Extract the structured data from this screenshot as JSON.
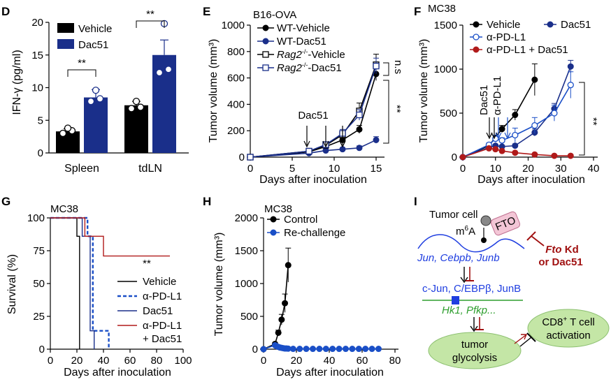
{
  "panels": [
    {
      "id": "D",
      "letter": "D",
      "chart_data": {
        "type": "bar",
        "ylabel": "IFN-γ (pg/ml)",
        "ylim": [
          0,
          20
        ],
        "yticks": [
          "0",
          "5",
          "10",
          "15",
          "20"
        ],
        "categories": [
          "Spleen",
          "tdLN"
        ],
        "series": [
          {
            "name": "Vehicle",
            "color": "#000000",
            "values": [
              3.3,
              7.3
            ],
            "errors": [
              0.4,
              0.6
            ],
            "points": [
              [
                3.0,
                3.4,
                3.8
              ],
              [
                6.8,
                7.0,
                7.9
              ]
            ]
          },
          {
            "name": "Dac51",
            "color": "#1a2f8a",
            "values": [
              8.5,
              15.0
            ],
            "errors": [
              1.2,
              2.3
            ],
            "points": [
              [
                7.9,
                8.3,
                9.6
              ],
              [
                12.3,
                12.8,
                19.8
              ]
            ]
          }
        ],
        "significance": [
          {
            "label": "**"
          },
          {
            "label": "**"
          }
        ]
      }
    },
    {
      "id": "E",
      "letter": "E",
      "chart_data": {
        "type": "line",
        "title": "B16-OVA",
        "xlabel": "Days after inoculation",
        "ylabel": "Tumor volume (mm³)",
        "xlim": [
          0,
          15
        ],
        "ylim": [
          0,
          1000
        ],
        "xticks": [
          "0",
          "5",
          "10",
          "15"
        ],
        "yticks": [
          "0",
          "200",
          "400",
          "600",
          "800",
          "1000"
        ],
        "series": [
          {
            "name": "WT-Vehicle",
            "marker": "filled-circle",
            "color": "#000000",
            "x": [
              0,
              7,
              9,
              11,
              13,
              15
            ],
            "y": [
              0,
              40,
              80,
              130,
              210,
              630
            ]
          },
          {
            "name": "WT-Dac51",
            "marker": "filled-circle",
            "color": "#1a2f8a",
            "x": [
              0,
              7,
              9,
              11,
              13,
              15
            ],
            "y": [
              0,
              30,
              50,
              60,
              70,
              130
            ]
          },
          {
            "name": "-Vehicle",
            "name_prefix": "Rag2",
            "name_sup": "-/-",
            "marker": "open-square",
            "color": "#000000",
            "x": [
              0,
              7,
              9,
              11,
              13,
              15
            ],
            "y": [
              0,
              45,
              90,
              170,
              350,
              700
            ]
          },
          {
            "name": "-Dac51",
            "name_prefix": "Rag2",
            "name_sup": "-/-",
            "marker": "open-square",
            "color": "#1a2f8a",
            "x": [
              0,
              7,
              9,
              11,
              13,
              15
            ],
            "y": [
              0,
              45,
              95,
              180,
              320,
              690
            ]
          }
        ],
        "annotations": {
          "treatment": "Dac51",
          "sig_top": "n.s",
          "sig_bottom": "**"
        }
      }
    },
    {
      "id": "F",
      "letter": "F",
      "chart_data": {
        "type": "line",
        "title": "MC38",
        "xlabel": "Days after inoculation",
        "ylabel": "Tumor volume (mm³)",
        "xlim": [
          0,
          40
        ],
        "ylim": [
          0,
          1500
        ],
        "xticks": [
          "0",
          "10",
          "20",
          "30",
          "40"
        ],
        "yticks": [
          "0",
          "500",
          "1000",
          "1500"
        ],
        "series": [
          {
            "name": "Vehicle",
            "marker": "filled-circle",
            "color": "#000000",
            "x": [
              0,
              8,
              12,
              16,
              22
            ],
            "y": [
              0,
              130,
              320,
              480,
              880
            ]
          },
          {
            "name": "Dac51",
            "marker": "filled-circle",
            "color": "#1a2f8a",
            "x": [
              0,
              8,
              10,
              12,
              16,
              22,
              28,
              33
            ],
            "y": [
              0,
              110,
              130,
              120,
              130,
              280,
              550,
              1030
            ]
          },
          {
            "name": "α-PD-L1",
            "marker": "open-circle",
            "color": "#1a4fc7",
            "x": [
              0,
              8,
              10,
              12,
              16,
              22,
              28,
              33
            ],
            "y": [
              0,
              140,
              210,
              190,
              250,
              360,
              500,
              820
            ]
          },
          {
            "name": "α-PD-L1 + Dac51",
            "marker": "filled-circle",
            "color": "#b01a1a",
            "x": [
              0,
              8,
              10,
              12,
              16,
              22,
              28,
              33
            ],
            "y": [
              0,
              100,
              90,
              70,
              50,
              30,
              15,
              15
            ]
          }
        ],
        "annotations": {
          "treatment1": "Dac51",
          "treatment2": "α-PD-L1",
          "sig": "**"
        }
      }
    },
    {
      "id": "G",
      "letter": "G",
      "chart_data": {
        "type": "line",
        "subtype": "survival",
        "title": "MC38",
        "xlabel": "Days after inoculation",
        "ylabel": "Survival (%)",
        "xlim": [
          0,
          100
        ],
        "ylim": [
          0,
          100
        ],
        "xticks": [
          "0",
          "20",
          "40",
          "60",
          "80",
          "100"
        ],
        "yticks": [
          "0",
          "25",
          "50",
          "75",
          "100"
        ],
        "series": [
          {
            "name": "Vehicle",
            "style": "solid",
            "color": "#000000",
            "x": [
              0,
              20,
              20,
              22,
              22
            ],
            "y": [
              100,
              100,
              86,
              86,
              0
            ]
          },
          {
            "name": "α-PD-L1",
            "style": "dashed",
            "color": "#1a4fc7",
            "x": [
              0,
              28,
              28,
              32,
              32,
              35,
              35,
              44,
              44
            ],
            "y": [
              100,
              100,
              86,
              86,
              14,
              14,
              14,
              14,
              0
            ]
          },
          {
            "name": "Dac51",
            "style": "solid",
            "color": "#1a2f8a",
            "x": [
              0,
              24,
              24,
              30,
              30,
              33,
              33
            ],
            "y": [
              100,
              100,
              86,
              86,
              14,
              14,
              0
            ]
          },
          {
            "name": "α-PD-L1",
            "name2": "+ Dac51",
            "style": "solid",
            "color": "#b01a1a",
            "x": [
              0,
              26,
              26,
              40,
              40,
              90
            ],
            "y": [
              100,
              100,
              86,
              86,
              71,
              71
            ]
          }
        ],
        "annotations": {
          "sig": "**"
        }
      }
    },
    {
      "id": "H",
      "letter": "H",
      "chart_data": {
        "type": "line",
        "title": "MC38",
        "xlabel": "Days after inoculation",
        "ylabel": "Tumor volume (mm³)",
        "xlim": [
          0,
          80
        ],
        "ylim": [
          0,
          2000
        ],
        "xticks": [
          "0",
          "20",
          "40",
          "60",
          "80"
        ],
        "yticks": [
          "0",
          "500",
          "1000",
          "1500",
          "2000"
        ],
        "series": [
          {
            "name": "Control",
            "marker": "filled-circle",
            "color": "#000000",
            "x": [
              0,
              7,
              9,
              11,
              13,
              15
            ],
            "y": [
              0,
              80,
              250,
              450,
              700,
              1280
            ]
          },
          {
            "name": "Re-challenge",
            "marker": "filled-circle",
            "color": "#1a4fc7",
            "x": [
              0,
              7,
              8,
              9,
              10,
              11,
              12,
              13,
              14,
              15,
              18,
              22,
              26,
              30,
              34,
              38,
              42,
              46,
              50,
              54,
              58,
              62,
              66,
              70
            ],
            "y": [
              0,
              60,
              45,
              35,
              25,
              20,
              15,
              10,
              10,
              8,
              5,
              5,
              5,
              5,
              5,
              5,
              5,
              5,
              5,
              5,
              5,
              5,
              5,
              5
            ]
          }
        ]
      }
    },
    {
      "id": "I",
      "letter": "I",
      "diagram": {
        "tumor_cell": "Tumor cell",
        "m6a": "m",
        "m6a_sup": "6",
        "m6a_tail": "A",
        "fto": "FTO",
        "genes_mrna": "Jun, Cebpb, Junb",
        "inhibitor_line1": "Fto",
        "inhibitor_line1_tail": " Kd",
        "inhibitor_line2": "or Dac51",
        "proteins": "c-Jun, C/EBPβ, JunB",
        "targets": "Hk1, Pfkp...",
        "glycolysis_line1": "tumor",
        "glycolysis_line2": "glycolysis",
        "tcell_line1": "CD8",
        "tcell_line1_sup": "+",
        "tcell_line1_tail": " T cell",
        "tcell_line2": "activation",
        "colors": {
          "blue": "#1f3ee0",
          "green": "#2e9e2e",
          "red": "#a01010",
          "fto_fill": "#f3c6d6",
          "ellipse_fill": "#c4e6a6"
        }
      }
    }
  ]
}
